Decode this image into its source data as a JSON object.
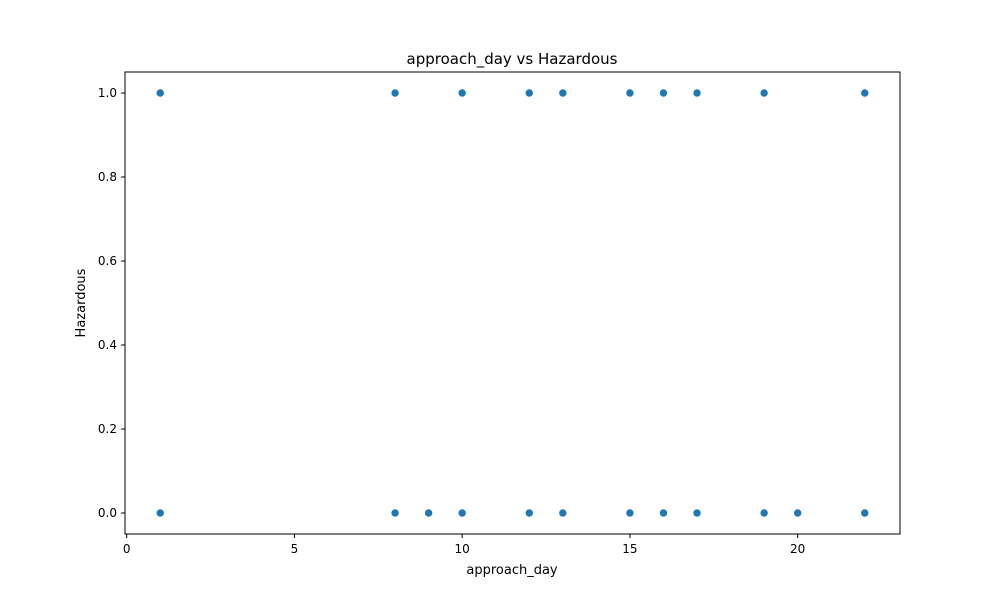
{
  "chart_data": {
    "type": "scatter",
    "title": "approach_day vs Hazardous",
    "xlabel": "approach_day",
    "ylabel": "Hazardous",
    "xlim": [
      -0.05,
      23.05
    ],
    "ylim": [
      -0.05,
      1.05
    ],
    "xticks": [
      0,
      5,
      10,
      15,
      20
    ],
    "xtick_labels": [
      "0",
      "5",
      "10",
      "15",
      "20"
    ],
    "yticks": [
      0.0,
      0.2,
      0.4,
      0.6,
      0.8,
      1.0
    ],
    "ytick_labels": [
      "0.0",
      "0.2",
      "0.4",
      "0.6",
      "0.8",
      "1.0"
    ],
    "grid": false,
    "marker_color": "#1f77b4",
    "points": [
      {
        "x": 1,
        "y": 1.0
      },
      {
        "x": 8,
        "y": 1.0
      },
      {
        "x": 10,
        "y": 1.0
      },
      {
        "x": 12,
        "y": 1.0
      },
      {
        "x": 13,
        "y": 1.0
      },
      {
        "x": 15,
        "y": 1.0
      },
      {
        "x": 16,
        "y": 1.0
      },
      {
        "x": 17,
        "y": 1.0
      },
      {
        "x": 19,
        "y": 1.0
      },
      {
        "x": 22,
        "y": 1.0
      },
      {
        "x": 1,
        "y": 0.0
      },
      {
        "x": 8,
        "y": 0.0
      },
      {
        "x": 9,
        "y": 0.0
      },
      {
        "x": 10,
        "y": 0.0
      },
      {
        "x": 12,
        "y": 0.0
      },
      {
        "x": 13,
        "y": 0.0
      },
      {
        "x": 15,
        "y": 0.0
      },
      {
        "x": 16,
        "y": 0.0
      },
      {
        "x": 17,
        "y": 0.0
      },
      {
        "x": 19,
        "y": 0.0
      },
      {
        "x": 20,
        "y": 0.0
      },
      {
        "x": 22,
        "y": 0.0
      }
    ]
  }
}
